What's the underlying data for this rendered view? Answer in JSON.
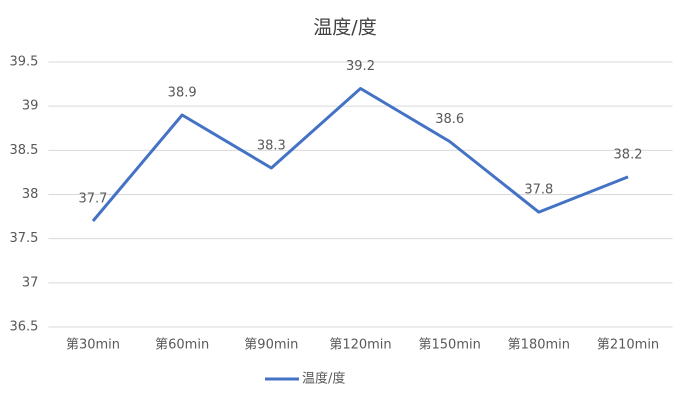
{
  "chart_data": {
    "type": "line",
    "title": "温度/度",
    "categories": [
      "第30min",
      "第60min",
      "第90min",
      "第120min",
      "第150min",
      "第180min",
      "第210min"
    ],
    "series": [
      {
        "name": "温度/度",
        "color": "#4472c4",
        "values": [
          37.7,
          38.9,
          38.3,
          39.2,
          38.6,
          37.8,
          38.2
        ]
      }
    ],
    "ylim": [
      36.5,
      39.5
    ],
    "yticks": [
      36.5,
      37,
      37.5,
      38,
      38.5,
      39,
      39.5
    ],
    "grid": true,
    "legend": "bottom"
  }
}
